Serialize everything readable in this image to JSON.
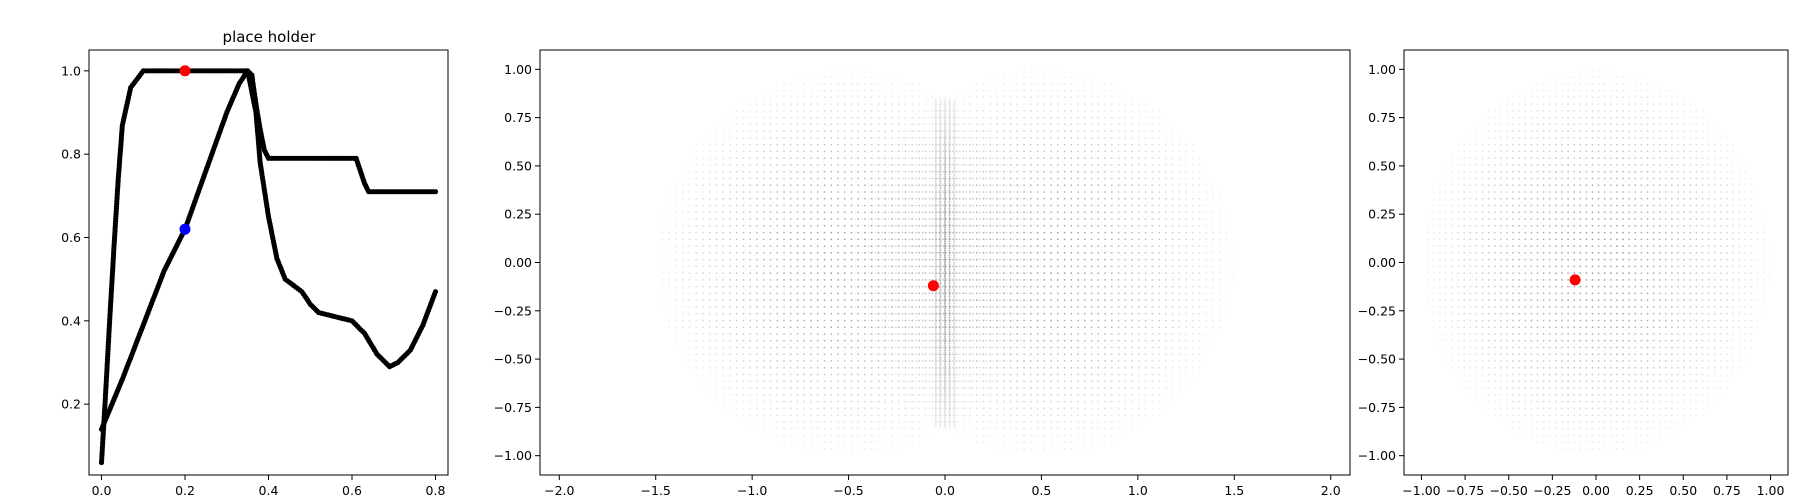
{
  "chart_data": [
    {
      "type": "scatter",
      "title": "place holder",
      "xlabel": "",
      "ylabel": "",
      "xlim": [
        -0.03,
        0.83
      ],
      "ylim": [
        0.03,
        1.05
      ],
      "xticks": [
        "0.0",
        "0.2",
        "0.4",
        "0.6",
        "0.8"
      ],
      "yticks": [
        "0.2",
        "0.4",
        "0.6",
        "0.8",
        "1.0"
      ],
      "xtick_values": [
        0.0,
        0.2,
        0.4,
        0.6,
        0.8
      ],
      "ytick_values": [
        0.2,
        0.4,
        0.6,
        0.8,
        1.0
      ],
      "grid": false,
      "point_color": "#000000",
      "series": [
        {
          "values": [
            [
              0.0,
              0.06
            ],
            [
              0.01,
              0.23
            ],
            [
              0.02,
              0.41
            ],
            [
              0.03,
              0.58
            ],
            [
              0.04,
              0.74
            ],
            [
              0.05,
              0.87
            ],
            [
              0.07,
              0.96
            ],
            [
              0.1,
              1.0
            ],
            [
              0.14,
              1.0
            ],
            [
              0.2,
              1.0
            ],
            [
              0.26,
              1.0
            ],
            [
              0.3,
              1.0
            ],
            [
              0.35,
              1.0
            ],
            [
              0.36,
              0.99
            ],
            [
              0.37,
              0.92
            ],
            [
              0.38,
              0.86
            ],
            [
              0.39,
              0.81
            ],
            [
              0.4,
              0.79
            ],
            [
              0.45,
              0.79
            ],
            [
              0.5,
              0.79
            ],
            [
              0.55,
              0.79
            ],
            [
              0.61,
              0.79
            ],
            [
              0.63,
              0.73
            ],
            [
              0.64,
              0.71
            ],
            [
              0.7,
              0.71
            ],
            [
              0.75,
              0.71
            ],
            [
              0.8,
              0.71
            ]
          ]
        },
        {
          "values": [
            [
              0.0,
              0.14
            ],
            [
              0.05,
              0.26
            ],
            [
              0.1,
              0.39
            ],
            [
              0.15,
              0.52
            ],
            [
              0.2,
              0.62
            ],
            [
              0.25,
              0.76
            ],
            [
              0.3,
              0.9
            ],
            [
              0.33,
              0.97
            ],
            [
              0.35,
              1.0
            ],
            [
              0.37,
              0.9
            ],
            [
              0.38,
              0.78
            ],
            [
              0.4,
              0.65
            ],
            [
              0.42,
              0.55
            ],
            [
              0.44,
              0.5
            ],
            [
              0.48,
              0.47
            ],
            [
              0.5,
              0.44
            ],
            [
              0.52,
              0.42
            ],
            [
              0.56,
              0.41
            ],
            [
              0.6,
              0.4
            ],
            [
              0.63,
              0.37
            ],
            [
              0.66,
              0.32
            ],
            [
              0.69,
              0.29
            ],
            [
              0.71,
              0.3
            ],
            [
              0.74,
              0.33
            ],
            [
              0.77,
              0.39
            ],
            [
              0.8,
              0.47
            ]
          ]
        }
      ],
      "highlights": [
        {
          "x": 0.2,
          "y": 1.0,
          "color": "#ff0000"
        },
        {
          "x": 0.2,
          "y": 0.62,
          "color": "#0000ff"
        }
      ]
    },
    {
      "type": "scatter",
      "title": "",
      "xlabel": "",
      "ylabel": "",
      "xlim": [
        -2.1,
        2.1
      ],
      "ylim": [
        -1.1,
        1.1
      ],
      "xticks": [
        "−2.0",
        "−1.5",
        "−1.0",
        "−0.5",
        "0.0",
        "0.5",
        "1.0",
        "1.5",
        "2.0"
      ],
      "yticks": [
        "−1.00",
        "−0.75",
        "−0.50",
        "−0.25",
        "0.00",
        "0.25",
        "0.50",
        "0.75",
        "1.00"
      ],
      "xtick_values": [
        -2.0,
        -1.5,
        -1.0,
        -0.5,
        0.0,
        0.5,
        1.0,
        1.5,
        2.0
      ],
      "ytick_values": [
        -1.0,
        -0.75,
        -0.5,
        -0.25,
        0.0,
        0.25,
        0.5,
        0.75,
        1.0
      ],
      "grid": false,
      "point_cloud": [
        {
          "shape": "disc",
          "center": [
            -0.5,
            0.0
          ],
          "radius": 1.0
        },
        {
          "shape": "disc",
          "center": [
            0.5,
            0.0
          ],
          "radius": 1.0
        }
      ],
      "dense_band": {
        "x": 0.0,
        "half_width": 0.06,
        "y_range": [
          -0.85,
          0.85
        ]
      },
      "highlights": [
        {
          "x": -0.06,
          "y": -0.12,
          "color": "#ff0000"
        }
      ]
    },
    {
      "type": "scatter",
      "title": "",
      "xlabel": "",
      "ylabel": "",
      "xlim": [
        -1.1,
        1.1
      ],
      "ylim": [
        -1.1,
        1.1
      ],
      "xticks": [
        "−1.00",
        "−0.75",
        "−0.50",
        "−0.25",
        "0.00",
        "0.25",
        "0.50",
        "0.75",
        "1.00"
      ],
      "yticks": [
        "−1.00",
        "−0.75",
        "−0.50",
        "−0.25",
        "0.00",
        "0.25",
        "0.50",
        "0.75",
        "1.00"
      ],
      "xtick_values": [
        -1.0,
        -0.75,
        -0.5,
        -0.25,
        0.0,
        0.25,
        0.5,
        0.75,
        1.0
      ],
      "ytick_values": [
        -1.0,
        -0.75,
        -0.5,
        -0.25,
        0.0,
        0.25,
        0.5,
        0.75,
        1.0
      ],
      "grid": false,
      "point_cloud": [
        {
          "shape": "disc",
          "center": [
            0.0,
            0.0
          ],
          "radius": 1.0
        }
      ],
      "highlights": [
        {
          "x": -0.12,
          "y": -0.09,
          "color": "#ff0000"
        }
      ]
    }
  ]
}
